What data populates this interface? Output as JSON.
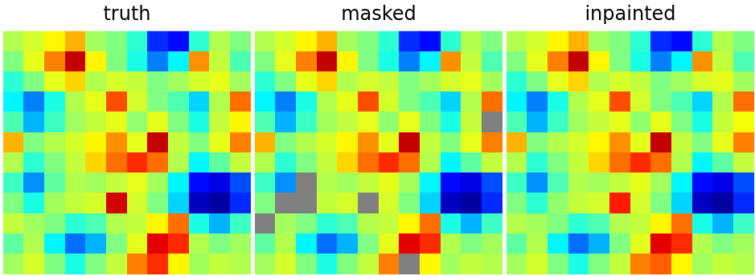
{
  "chart_data": [
    {
      "type": "heatmap",
      "title": "truth",
      "tick_labels": false,
      "zlim": [
        -3,
        3
      ],
      "cells": [
        [
          0.3,
          0.5,
          0.8,
          1.2,
          0.2,
          0.0,
          -0.5,
          -2.0,
          -2.2,
          -0.5,
          0.3,
          0.0
        ],
        [
          0.0,
          0.6,
          1.5,
          2.6,
          0.8,
          0.0,
          -0.6,
          -1.5,
          -0.8,
          1.4,
          0.4,
          -0.3
        ],
        [
          -0.5,
          0.0,
          0.6,
          1.0,
          0.3,
          0.5,
          0.4,
          0.0,
          0.2,
          0.5,
          0.6,
          0.2
        ],
        [
          -0.8,
          -1.5,
          -0.6,
          0.3,
          0.6,
          1.8,
          0.5,
          0.0,
          -0.3,
          -1.0,
          0.3,
          1.6
        ],
        [
          -0.3,
          -1.2,
          -0.4,
          0.2,
          0.4,
          0.6,
          0.1,
          0.6,
          0.0,
          -0.6,
          0.4,
          0.8
        ],
        [
          1.2,
          0.0,
          0.3,
          0.5,
          0.8,
          1.4,
          0.6,
          2.6,
          0.4,
          0.0,
          0.6,
          1.5
        ],
        [
          0.3,
          -0.5,
          0.0,
          0.4,
          1.0,
          1.6,
          2.0,
          1.6,
          0.3,
          -0.8,
          -0.2,
          0.4
        ],
        [
          -0.4,
          -1.4,
          -0.2,
          0.3,
          0.2,
          0.4,
          0.6,
          0.2,
          -0.8,
          -2.2,
          -2.4,
          -1.8
        ],
        [
          0.0,
          -0.6,
          0.2,
          0.4,
          0.5,
          2.5,
          0.5,
          0.0,
          -1.0,
          -2.6,
          -2.8,
          -2.0
        ],
        [
          0.4,
          0.2,
          0.0,
          -0.5,
          -0.3,
          0.3,
          0.4,
          0.8,
          1.6,
          -0.6,
          -1.2,
          -0.4
        ],
        [
          -0.2,
          0.3,
          -0.8,
          -1.6,
          -1.2,
          0.0,
          0.6,
          2.4,
          2.0,
          0.3,
          0.0,
          0.2
        ],
        [
          0.2,
          0.5,
          0.0,
          -0.6,
          0.0,
          0.4,
          1.5,
          2.0,
          0.8,
          0.2,
          0.4,
          0.3
        ]
      ]
    },
    {
      "type": "heatmap",
      "title": "masked",
      "tick_labels": false,
      "zlim": [
        -3,
        3
      ],
      "cells": [
        [
          0.3,
          0.5,
          0.8,
          1.2,
          0.2,
          0.0,
          -0.5,
          -2.0,
          -2.2,
          -0.5,
          0.3,
          0.0
        ],
        [
          0.0,
          0.6,
          1.5,
          2.6,
          0.8,
          0.0,
          -0.6,
          -1.5,
          -0.8,
          1.4,
          0.4,
          -0.3
        ],
        [
          -0.5,
          0.0,
          0.6,
          1.0,
          0.3,
          0.5,
          0.4,
          0.0,
          0.2,
          0.5,
          0.6,
          0.2
        ],
        [
          -0.8,
          -1.5,
          -0.6,
          0.3,
          0.6,
          1.8,
          0.5,
          0.0,
          -0.3,
          -1.0,
          0.3,
          1.6
        ],
        [
          -0.3,
          -1.2,
          -0.4,
          0.2,
          0.4,
          0.6,
          0.1,
          0.6,
          0.0,
          -0.6,
          0.4,
          null
        ],
        [
          1.2,
          0.0,
          0.3,
          0.5,
          0.8,
          1.4,
          0.6,
          2.6,
          0.4,
          0.0,
          0.6,
          1.5
        ],
        [
          0.3,
          -0.5,
          0.0,
          0.4,
          1.0,
          1.6,
          2.0,
          1.6,
          0.3,
          -0.8,
          -0.2,
          0.4
        ],
        [
          -0.4,
          -1.4,
          null,
          0.3,
          0.2,
          0.4,
          0.6,
          0.2,
          -0.8,
          -2.2,
          -2.4,
          -1.8
        ],
        [
          0.0,
          null,
          null,
          0.4,
          0.5,
          null,
          0.5,
          0.0,
          -1.0,
          -2.6,
          -2.8,
          -2.0
        ],
        [
          null,
          0.2,
          0.0,
          -0.5,
          -0.3,
          0.3,
          0.4,
          0.8,
          1.6,
          -0.6,
          -1.2,
          -0.4
        ],
        [
          -0.2,
          0.3,
          -0.8,
          -1.6,
          -1.2,
          0.0,
          0.6,
          2.4,
          2.0,
          0.3,
          0.0,
          0.2
        ],
        [
          0.2,
          0.5,
          0.0,
          -0.6,
          0.0,
          0.4,
          1.5,
          null,
          0.8,
          0.2,
          0.4,
          0.3
        ]
      ]
    },
    {
      "type": "heatmap",
      "title": "inpainted",
      "tick_labels": false,
      "zlim": [
        -3,
        3
      ],
      "cells": [
        [
          0.3,
          0.5,
          0.8,
          1.2,
          0.2,
          0.0,
          -0.5,
          -2.0,
          -2.2,
          -0.5,
          0.3,
          0.0
        ],
        [
          0.0,
          0.6,
          1.5,
          2.6,
          0.8,
          0.0,
          -0.6,
          -1.5,
          -0.8,
          1.4,
          0.4,
          -0.3
        ],
        [
          -0.5,
          0.0,
          0.6,
          1.0,
          0.3,
          0.5,
          0.4,
          0.0,
          0.2,
          0.5,
          0.6,
          0.2
        ],
        [
          -0.8,
          -1.5,
          -0.6,
          0.3,
          0.6,
          1.8,
          0.5,
          0.0,
          -0.3,
          -1.0,
          0.3,
          1.6
        ],
        [
          -0.3,
          -1.2,
          -0.4,
          0.2,
          0.4,
          0.6,
          0.1,
          0.6,
          0.0,
          -0.6,
          0.4,
          0.7
        ],
        [
          1.2,
          0.0,
          0.3,
          0.5,
          0.8,
          1.4,
          0.6,
          2.6,
          0.4,
          0.0,
          0.6,
          1.5
        ],
        [
          0.3,
          -0.5,
          0.0,
          0.4,
          1.0,
          1.6,
          2.0,
          1.6,
          0.3,
          -0.8,
          -0.2,
          0.4
        ],
        [
          -0.4,
          -1.4,
          -0.3,
          0.3,
          0.2,
          0.4,
          0.6,
          0.2,
          -0.8,
          -2.2,
          -2.4,
          -1.8
        ],
        [
          0.0,
          -0.5,
          0.1,
          0.4,
          0.5,
          2.1,
          0.5,
          0.0,
          -1.0,
          -2.6,
          -2.8,
          -2.0
        ],
        [
          0.3,
          0.2,
          0.0,
          -0.5,
          -0.3,
          0.3,
          0.4,
          0.8,
          1.6,
          -0.6,
          -1.2,
          -0.4
        ],
        [
          -0.2,
          0.3,
          -0.8,
          -1.6,
          -1.2,
          0.0,
          0.6,
          2.4,
          2.0,
          0.3,
          0.0,
          0.2
        ],
        [
          0.2,
          0.5,
          0.0,
          -0.6,
          0.0,
          0.4,
          1.5,
          1.7,
          0.8,
          0.2,
          0.4,
          0.3
        ]
      ]
    }
  ]
}
